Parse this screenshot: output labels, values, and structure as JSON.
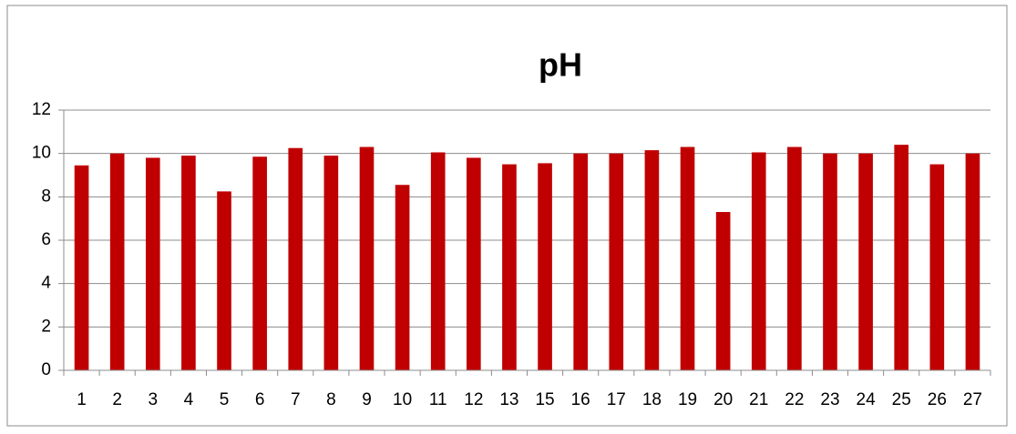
{
  "chart_data": {
    "type": "bar",
    "title": "pH",
    "categories": [
      "1",
      "2",
      "3",
      "4",
      "5",
      "6",
      "7",
      "8",
      "9",
      "10",
      "11",
      "12",
      "13",
      "15",
      "16",
      "17",
      "18",
      "19",
      "20",
      "21",
      "22",
      "23",
      "24",
      "25",
      "26",
      "27"
    ],
    "values": [
      9.45,
      10.0,
      9.8,
      9.9,
      8.25,
      9.85,
      10.25,
      9.9,
      10.3,
      8.55,
      10.05,
      9.8,
      9.5,
      9.55,
      10.0,
      10.0,
      10.15,
      10.3,
      7.3,
      10.05,
      10.3,
      10.0,
      10.0,
      10.4,
      9.5,
      10.0
    ],
    "color": "#c00000",
    "ylim": [
      0,
      12
    ],
    "yticks": [
      0,
      2,
      4,
      6,
      8,
      10,
      12
    ],
    "grid": true
  }
}
